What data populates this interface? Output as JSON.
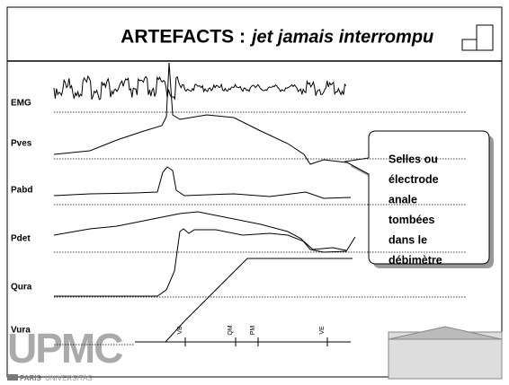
{
  "title": {
    "main": "ARTEFACTS :",
    "italic": "jet jamais interrompu"
  },
  "channels": [
    "EMG",
    "Pves",
    "Pabd",
    "Pdet",
    "Qura",
    "Vura"
  ],
  "events": [
    "VB",
    "QM",
    "PM",
    "VE"
  ],
  "callout": {
    "lines": [
      "Selles ou",
      "électrode",
      "anale",
      "tombées",
      "dans le",
      "débimètre"
    ]
  },
  "logo": {
    "name": "UPMC",
    "paris": "PARIS",
    "universitas": "UNIVERSITAS"
  }
}
